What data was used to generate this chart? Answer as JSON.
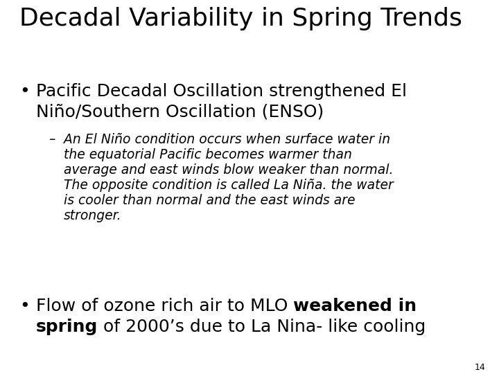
{
  "title": "Decadal Variability in Spring Trends",
  "title_fontsize": 26,
  "bg_color": "#ffffff",
  "text_color": "#000000",
  "bullet1_line1": "Pacific Decadal Oscillation strengthened El",
  "bullet1_line2": "Niño/Southern Oscillation (ENSO)",
  "bullet1_fontsize": 18,
  "sub_dash": "–",
  "sub_line1": "An El Niño condition occurs when surface water in",
  "sub_line2": "the equatorial Pacific becomes warmer than",
  "sub_line3": "average and east winds blow weaker than normal.",
  "sub_line4": "The opposite condition is called La Niña. the water",
  "sub_line5": "is cooler than normal and the east winds are",
  "sub_line6": "stronger.",
  "sub_fontsize": 13.5,
  "b2_plain1": "Flow of ozone rich air to MLO ",
  "b2_bold1": "weakened in",
  "b2_bold2": "spring",
  "b2_plain2": " of 2000’s due to La Nina- like cooling",
  "bullet2_fontsize": 18,
  "page_number": "14"
}
